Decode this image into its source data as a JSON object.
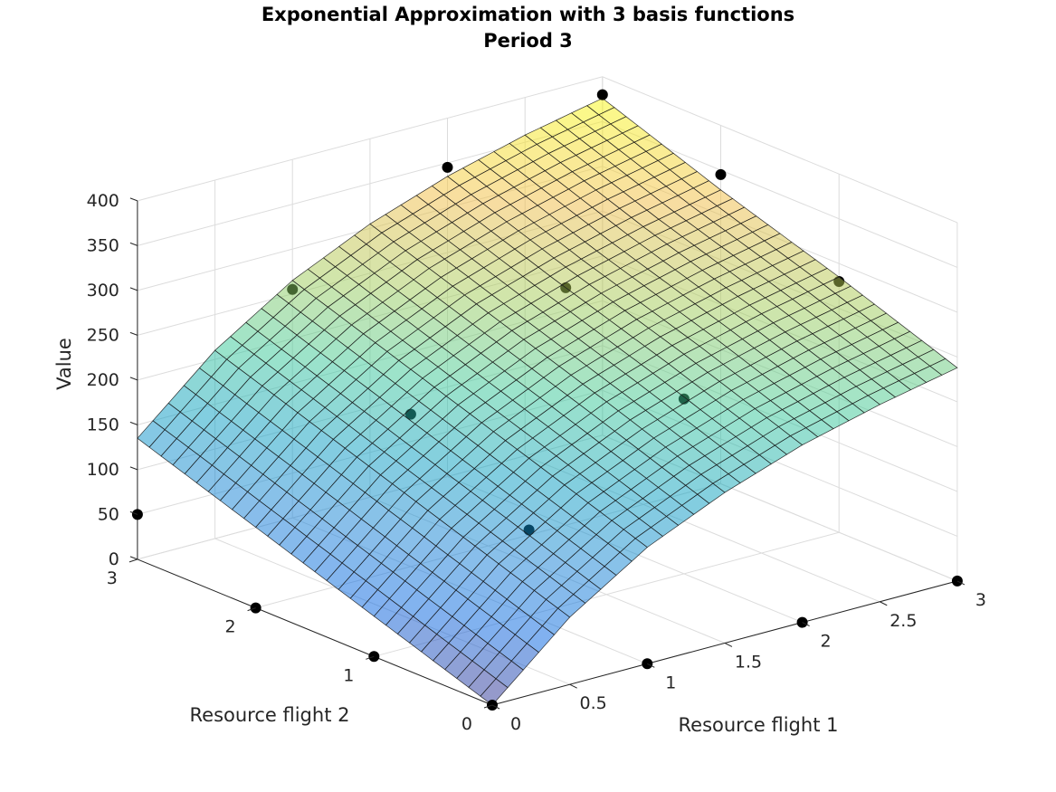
{
  "chart_data": {
    "type": "surface",
    "title": [
      "Exponential Approximation with 3 basis functions",
      "Period 3"
    ],
    "xlabel": "Resource flight 1",
    "ylabel": "Resource flight 2",
    "zlabel": "Value",
    "xlim": [
      0,
      3
    ],
    "ylim": [
      0,
      3
    ],
    "zlim": [
      0,
      400
    ],
    "x_ticks": [
      "0",
      "0.5",
      "1",
      "1.5",
      "2",
      "2.5",
      "3"
    ],
    "y_ticks": [
      "0",
      "1",
      "2",
      "3"
    ],
    "z_ticks": [
      "0",
      "50",
      "100",
      "150",
      "200",
      "250",
      "300",
      "350",
      "400"
    ],
    "grid": true,
    "surface": {
      "grid_x": [
        0,
        0.5,
        1,
        1.5,
        2,
        2.5,
        3
      ],
      "grid_y": [
        0,
        1,
        2,
        3
      ],
      "mesh_divisions": 30,
      "colormap": "parula",
      "face_alpha": 0.5,
      "values": [
        [
          0,
          75,
          130,
          168,
          198,
          220,
          238
        ],
        [
          45,
          120,
          175,
          215,
          245,
          267,
          285
        ],
        [
          90,
          165,
          220,
          260,
          288,
          310,
          328
        ],
        [
          135,
          210,
          265,
          305,
          335,
          358,
          376
        ]
      ]
    },
    "series": [
      {
        "marker": "filled-circle",
        "color": "#000000",
        "points": [
          {
            "x": 0,
            "y": 0,
            "z": 0
          },
          {
            "x": 1,
            "y": 0,
            "z": 0
          },
          {
            "x": 2,
            "y": 0,
            "z": 0
          },
          {
            "x": 3,
            "y": 0,
            "z": 0
          },
          {
            "x": 0,
            "y": 1,
            "z": 0
          },
          {
            "x": 1,
            "y": 1,
            "z": 95
          },
          {
            "x": 2,
            "y": 1,
            "z": 195
          },
          {
            "x": 3,
            "y": 1,
            "z": 280
          },
          {
            "x": 0,
            "y": 2,
            "z": 0
          },
          {
            "x": 1,
            "y": 2,
            "z": 170
          },
          {
            "x": 2,
            "y": 2,
            "z": 265
          },
          {
            "x": 3,
            "y": 2,
            "z": 345
          },
          {
            "x": 0,
            "y": 3,
            "z": 50
          },
          {
            "x": 1,
            "y": 3,
            "z": 255
          },
          {
            "x": 2,
            "y": 3,
            "z": 345
          },
          {
            "x": 3,
            "y": 3,
            "z": 380
          }
        ]
      }
    ]
  }
}
